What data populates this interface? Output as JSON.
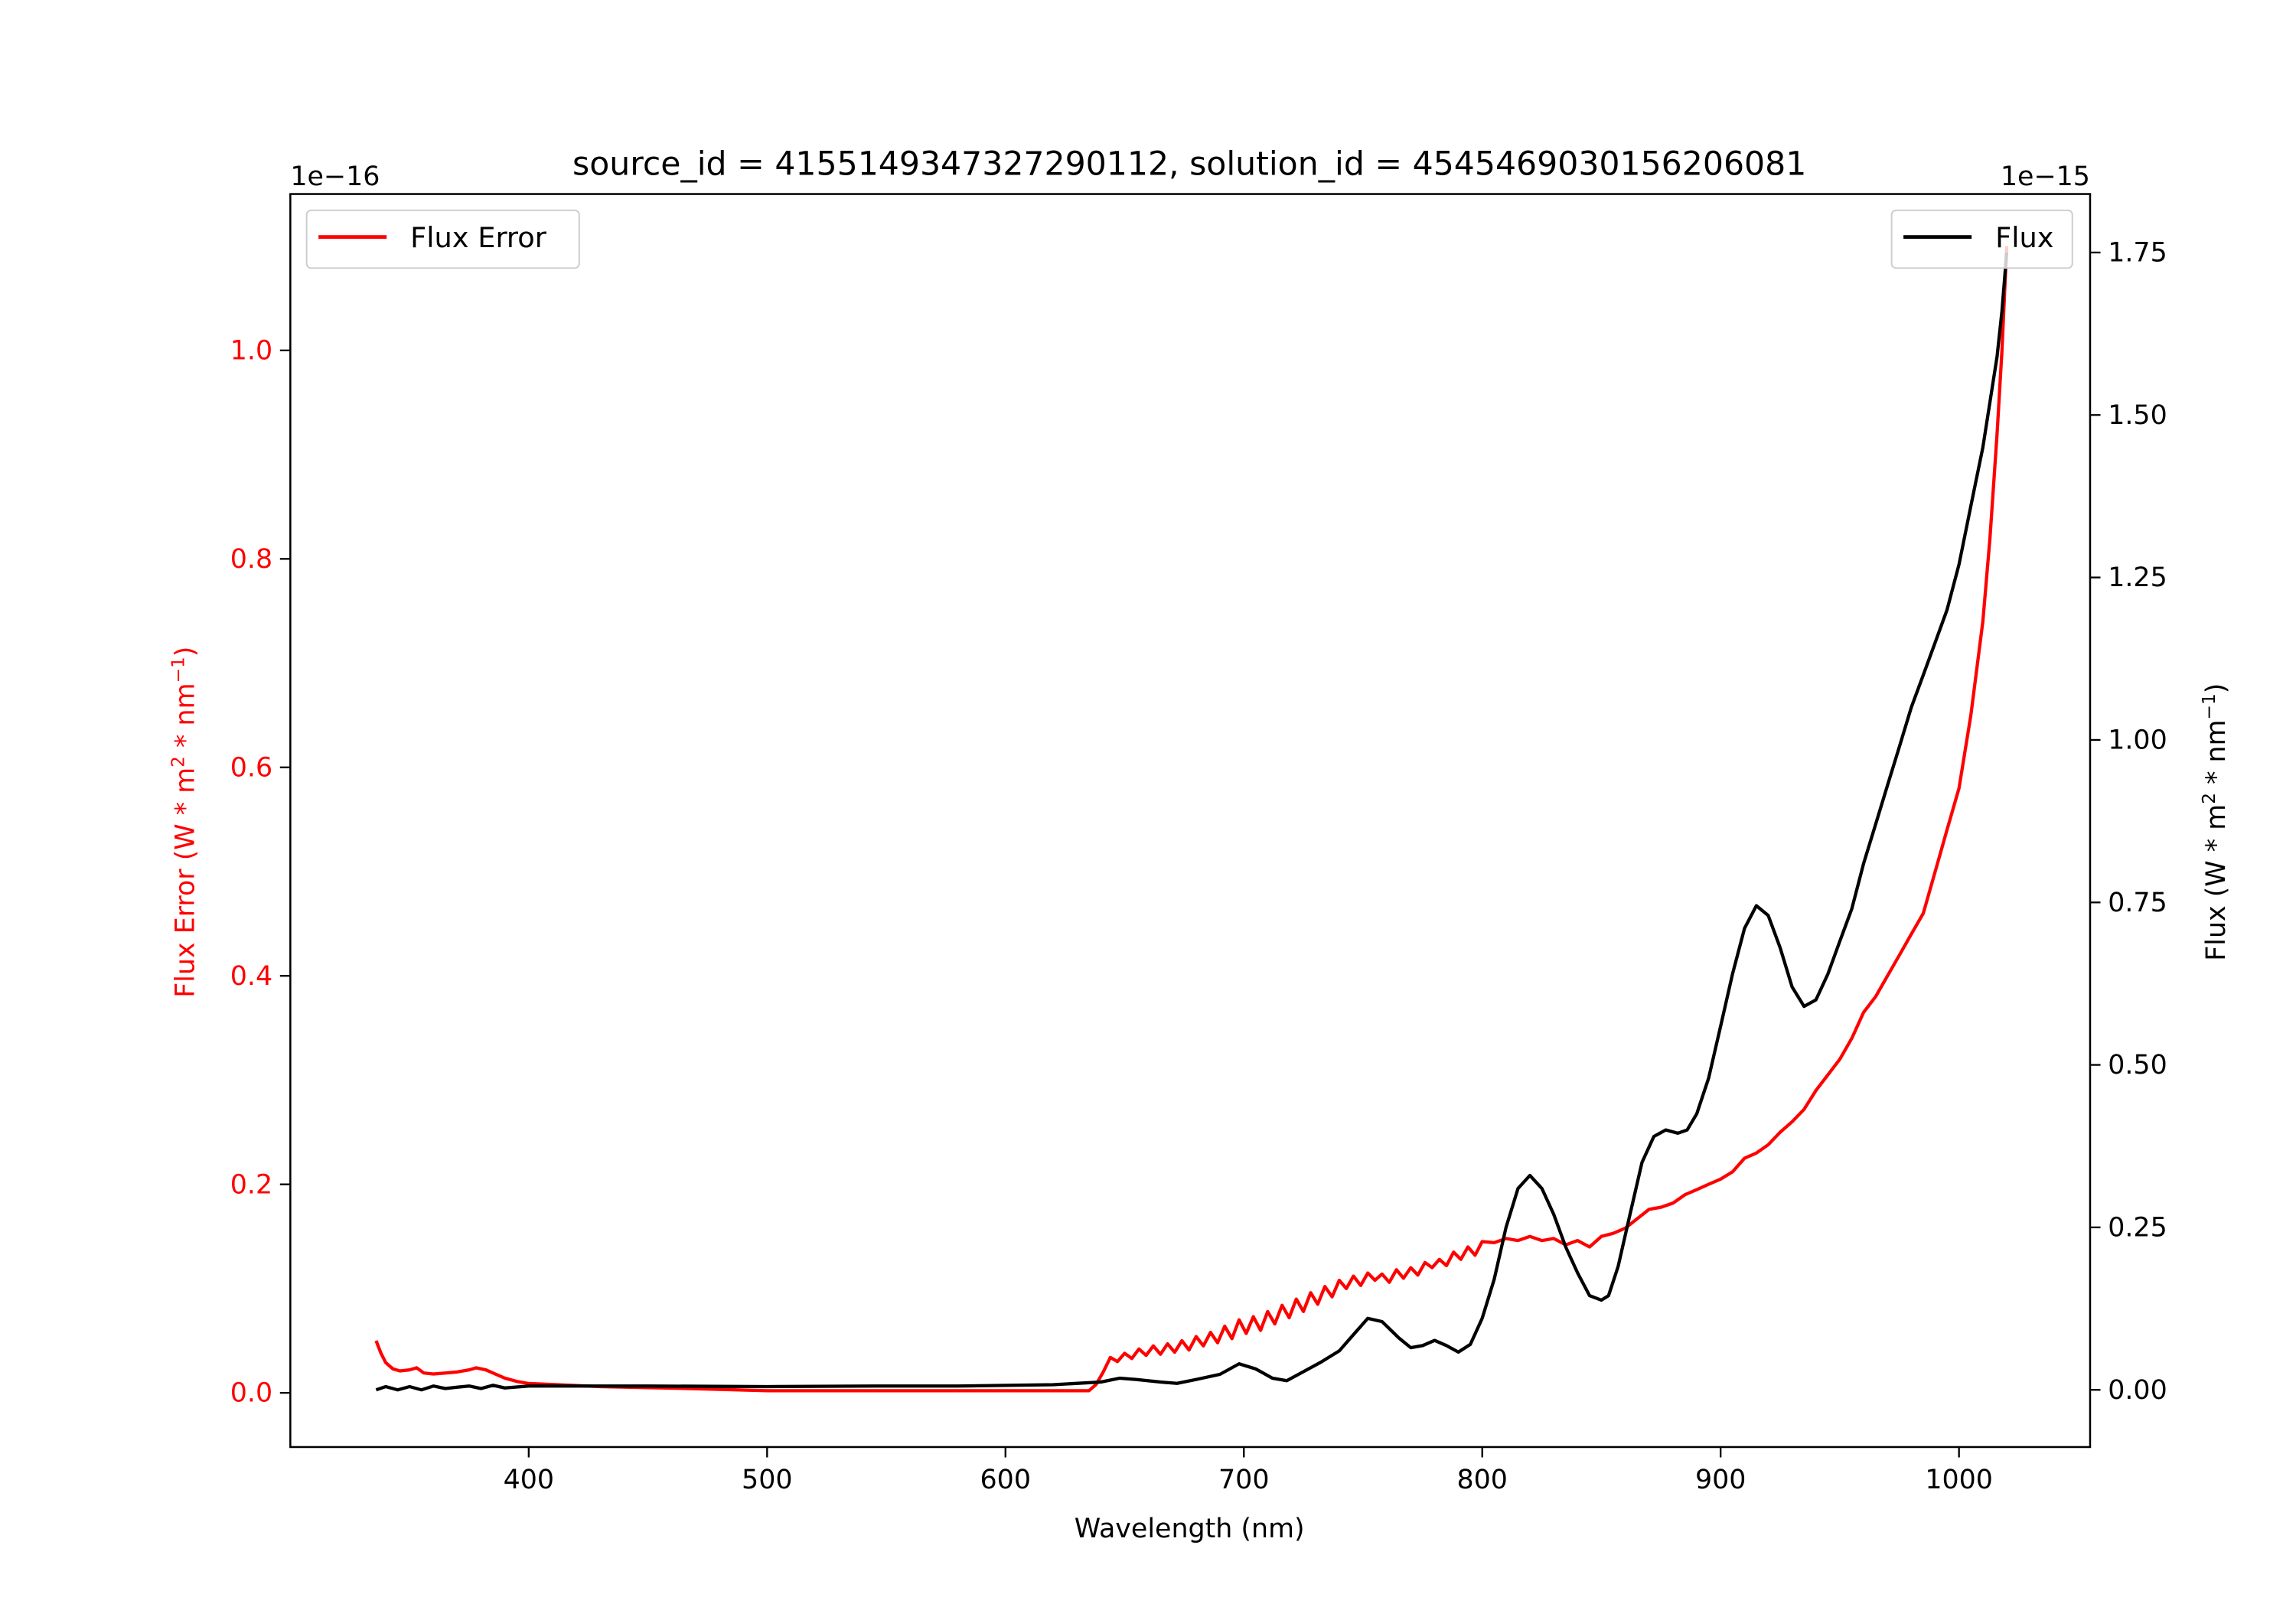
{
  "chart_data": {
    "type": "line",
    "title": "source_id = 4155149347327290112, solution_id = 4545469030156206081",
    "xlabel": "Wavelength (nm)",
    "ylabel_left": "Flux Error (W * m^2 * nm^-1)",
    "ylabel_right": "Flux (W * m^2 * nm^-1)",
    "left_offset_label": "1e−16",
    "right_offset_label": "1e−15",
    "xlim": [
      300,
      1055
    ],
    "ylim_left": [
      -0.052,
      1.15
    ],
    "ylim_right": [
      -0.088,
      1.84
    ],
    "xticks": [
      400,
      500,
      600,
      700,
      800,
      900,
      1000
    ],
    "xtick_labels": [
      "400",
      "500",
      "600",
      "700",
      "800",
      "900",
      "1000"
    ],
    "yticks_left": [
      0.0,
      0.2,
      0.4,
      0.6,
      0.8,
      1.0
    ],
    "ytick_labels_left": [
      "0.0",
      "0.2",
      "0.4",
      "0.6",
      "0.8",
      "1.0"
    ],
    "yticks_right": [
      0.0,
      0.25,
      0.5,
      0.75,
      1.0,
      1.25,
      1.5,
      1.75
    ],
    "ytick_labels_right": [
      "0.00",
      "0.25",
      "0.50",
      "0.75",
      "1.00",
      "1.25",
      "1.50",
      "1.75"
    ],
    "grid": false,
    "colors": {
      "flux_error": "#ff0000",
      "flux": "#000000"
    },
    "legends": [
      {
        "label": "Flux Error",
        "placement": "upper-left"
      },
      {
        "label": "Flux",
        "placement": "upper-right"
      }
    ],
    "series": [
      {
        "name": "Flux Error",
        "axis": "left",
        "scale": "1e-16",
        "x": [
          336,
          338,
          340,
          343,
          346,
          350,
          353,
          356,
          360,
          365,
          370,
          375,
          378,
          382,
          385,
          390,
          395,
          400,
          410,
          420,
          430,
          450,
          470,
          500,
          550,
          600,
          635,
          638,
          641,
          644,
          647,
          650,
          653,
          656,
          659,
          662,
          665,
          668,
          671,
          674,
          677,
          680,
          683,
          686,
          689,
          692,
          695,
          698,
          701,
          704,
          707,
          710,
          713,
          716,
          719,
          722,
          725,
          728,
          731,
          734,
          737,
          740,
          743,
          746,
          749,
          752,
          755,
          758,
          761,
          764,
          767,
          770,
          773,
          776,
          779,
          782,
          785,
          788,
          791,
          794,
          797,
          800,
          805,
          810,
          815,
          820,
          825,
          830,
          835,
          840,
          845,
          850,
          855,
          860,
          865,
          870,
          875,
          880,
          885,
          890,
          895,
          900,
          905,
          910,
          915,
          920,
          925,
          930,
          935,
          940,
          945,
          950,
          955,
          960,
          965,
          970,
          975,
          980,
          985,
          990,
          995,
          1000,
          1005,
          1010,
          1013,
          1016,
          1018,
          1020
        ],
        "y": [
          0.05,
          0.038,
          0.029,
          0.023,
          0.021,
          0.022,
          0.024,
          0.019,
          0.018,
          0.019,
          0.02,
          0.022,
          0.024,
          0.022,
          0.019,
          0.014,
          0.011,
          0.009,
          0.008,
          0.007,
          0.006,
          0.005,
          0.004,
          0.002,
          0.002,
          0.002,
          0.002,
          0.008,
          0.02,
          0.034,
          0.03,
          0.038,
          0.033,
          0.042,
          0.036,
          0.045,
          0.037,
          0.047,
          0.039,
          0.05,
          0.041,
          0.054,
          0.045,
          0.058,
          0.048,
          0.064,
          0.052,
          0.07,
          0.057,
          0.073,
          0.06,
          0.078,
          0.066,
          0.084,
          0.072,
          0.09,
          0.078,
          0.096,
          0.085,
          0.102,
          0.092,
          0.108,
          0.1,
          0.112,
          0.103,
          0.115,
          0.108,
          0.114,
          0.106,
          0.118,
          0.11,
          0.12,
          0.113,
          0.125,
          0.12,
          0.128,
          0.122,
          0.135,
          0.128,
          0.14,
          0.132,
          0.145,
          0.144,
          0.148,
          0.146,
          0.15,
          0.146,
          0.148,
          0.142,
          0.146,
          0.14,
          0.15,
          0.153,
          0.158,
          0.167,
          0.176,
          0.178,
          0.182,
          0.19,
          0.195,
          0.2,
          0.205,
          0.212,
          0.225,
          0.23,
          0.238,
          0.25,
          0.26,
          0.272,
          0.29,
          0.305,
          0.32,
          0.34,
          0.365,
          0.38,
          0.4,
          0.42,
          0.44,
          0.46,
          0.5,
          0.54,
          0.58,
          0.65,
          0.74,
          0.82,
          0.92,
          1.0,
          1.1
        ]
      },
      {
        "name": "Flux",
        "axis": "right",
        "scale": "1e-15",
        "x": [
          336,
          340,
          345,
          350,
          355,
          360,
          365,
          370,
          375,
          380,
          385,
          390,
          400,
          420,
          450,
          500,
          550,
          580,
          620,
          640,
          648,
          655,
          665,
          672,
          680,
          690,
          698,
          705,
          712,
          718,
          725,
          732,
          740,
          746,
          752,
          758,
          765,
          770,
          775,
          780,
          785,
          790,
          795,
          800,
          805,
          810,
          815,
          820,
          825,
          830,
          835,
          840,
          845,
          850,
          853,
          857,
          862,
          867,
          872,
          877,
          882,
          886,
          890,
          895,
          900,
          905,
          910,
          915,
          920,
          925,
          930,
          935,
          940,
          945,
          950,
          955,
          960,
          965,
          970,
          975,
          980,
          985,
          990,
          995,
          1000,
          1005,
          1010,
          1013,
          1016,
          1018,
          1020
        ],
        "y": [
          0.0,
          0.005,
          0.0,
          0.005,
          0.0,
          0.006,
          0.002,
          0.004,
          0.006,
          0.002,
          0.007,
          0.003,
          0.006,
          0.006,
          0.006,
          0.005,
          0.006,
          0.006,
          0.008,
          0.012,
          0.018,
          0.016,
          0.012,
          0.01,
          0.016,
          0.024,
          0.04,
          0.032,
          0.018,
          0.014,
          0.028,
          0.042,
          0.06,
          0.085,
          0.11,
          0.105,
          0.08,
          0.065,
          0.068,
          0.076,
          0.068,
          0.058,
          0.07,
          0.11,
          0.17,
          0.25,
          0.31,
          0.33,
          0.31,
          0.27,
          0.22,
          0.18,
          0.145,
          0.138,
          0.145,
          0.19,
          0.27,
          0.35,
          0.39,
          0.4,
          0.395,
          0.4,
          0.425,
          0.48,
          0.56,
          0.64,
          0.71,
          0.745,
          0.73,
          0.68,
          0.62,
          0.59,
          0.6,
          0.64,
          0.69,
          0.74,
          0.81,
          0.87,
          0.93,
          0.99,
          1.05,
          1.1,
          1.15,
          1.2,
          1.27,
          1.36,
          1.45,
          1.52,
          1.59,
          1.66,
          1.75
        ]
      }
    ]
  }
}
